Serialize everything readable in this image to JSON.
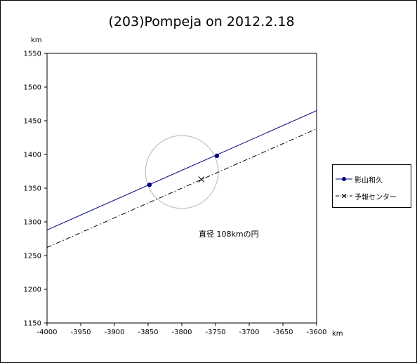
{
  "chart_data": {
    "type": "line",
    "title": "(203)Pompeja on 2012.2.18",
    "xlabel": "km",
    "ylabel": "km",
    "xlim": [
      -4000,
      -3600
    ],
    "ylim": [
      1150,
      1550
    ],
    "x_ticks": [
      "-4000",
      "-3950",
      "-3900",
      "-3850",
      "-3800",
      "-3750",
      "-3700",
      "-3650",
      "-3600"
    ],
    "y_ticks": [
      "1150",
      "1200",
      "1250",
      "1300",
      "1350",
      "1400",
      "1450",
      "1500",
      "1550"
    ],
    "x_tick_values": [
      -4000,
      -3950,
      -3900,
      -3850,
      -3800,
      -3750,
      -3700,
      -3650,
      -3600
    ],
    "y_tick_values": [
      1150,
      1200,
      1250,
      1300,
      1350,
      1400,
      1450,
      1500,
      1550
    ],
    "grid": false,
    "legend_position": "right",
    "annotation": "直径 108kmの円",
    "circle": {
      "center": [
        -3800,
        1374
      ],
      "diameter": 108
    },
    "series": [
      {
        "name": "影山和久",
        "color": "#000080",
        "style": "solid",
        "line": [
          [
            -4000,
            1288
          ],
          [
            -3600,
            1465
          ]
        ],
        "points": [
          [
            -3848,
            1355
          ],
          [
            -3748,
            1398
          ]
        ]
      },
      {
        "name": "予報センター",
        "color": "#000000",
        "style": "dashdot",
        "line": [
          [
            -4000,
            1262
          ],
          [
            -3600,
            1438
          ]
        ],
        "points": [
          [
            -3771,
            1363
          ]
        ]
      }
    ]
  }
}
